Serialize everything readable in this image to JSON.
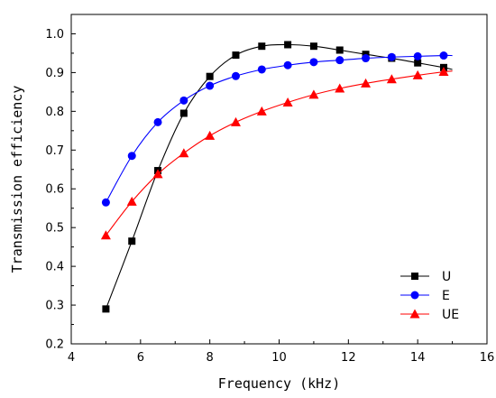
{
  "chart_data": {
    "type": "line",
    "title": "",
    "xlabel": "Frequency (kHz)",
    "ylabel": "Transmission efficiency",
    "xlim": [
      4,
      16
    ],
    "ylim": [
      0.2,
      1.05
    ],
    "x_ticks": [
      4,
      6,
      8,
      10,
      12,
      14,
      16
    ],
    "y_ticks": [
      0.2,
      0.3,
      0.4,
      0.5,
      0.6,
      0.7,
      0.8,
      0.9,
      1.0
    ],
    "x_tick_labels": [
      "4",
      "6",
      "8",
      "10",
      "12",
      "14",
      "16"
    ],
    "y_tick_labels": [
      "0.2",
      "0.3",
      "0.4",
      "0.5",
      "0.6",
      "0.7",
      "0.8",
      "0.9",
      "1.0"
    ],
    "grid": false,
    "legend_position": "bottom-right",
    "series": [
      {
        "name": "U",
        "color": "#000000",
        "marker": "square",
        "x": [
          5.0,
          5.75,
          6.5,
          7.25,
          8.0,
          8.75,
          9.5,
          10.25,
          11.0,
          11.75,
          12.5,
          13.25,
          14.0,
          14.75
        ],
        "y": [
          0.29,
          0.465,
          0.647,
          0.795,
          0.89,
          0.945,
          0.968,
          0.972,
          0.968,
          0.958,
          0.947,
          0.937,
          0.925,
          0.913
        ],
        "curve_end": [
          15.0,
          0.908
        ]
      },
      {
        "name": "E",
        "color": "#0000ff",
        "marker": "circle",
        "x": [
          5.0,
          5.75,
          6.5,
          7.25,
          8.0,
          8.75,
          9.5,
          10.25,
          11.0,
          11.75,
          12.5,
          13.25,
          14.0,
          14.75
        ],
        "y": [
          0.565,
          0.685,
          0.772,
          0.828,
          0.866,
          0.891,
          0.908,
          0.919,
          0.927,
          0.932,
          0.937,
          0.94,
          0.942,
          0.944
        ],
        "curve_end": [
          15.0,
          0.944
        ]
      },
      {
        "name": "UE",
        "color": "#ff0000",
        "marker": "triangle",
        "x": [
          5.0,
          5.75,
          6.5,
          7.25,
          8.0,
          8.75,
          9.5,
          10.25,
          11.0,
          11.75,
          12.5,
          13.25,
          14.0,
          14.75
        ],
        "y": [
          0.48,
          0.567,
          0.638,
          0.692,
          0.737,
          0.772,
          0.8,
          0.823,
          0.843,
          0.859,
          0.872,
          0.883,
          0.893,
          0.902
        ],
        "curve_end": [
          15.0,
          0.904
        ]
      }
    ]
  }
}
